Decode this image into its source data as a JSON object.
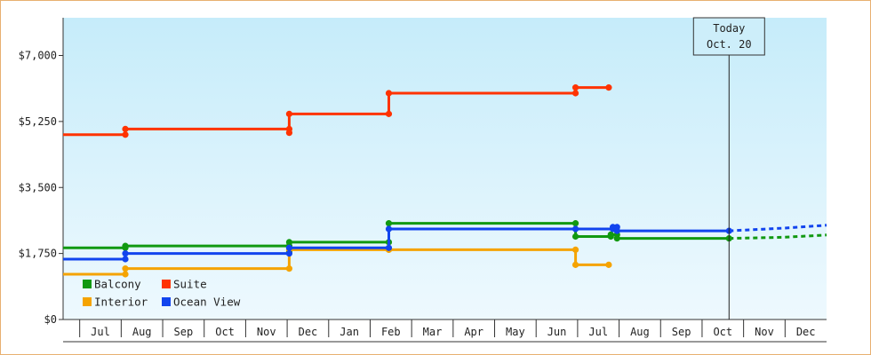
{
  "chart_data": {
    "type": "line",
    "title": "",
    "xlabel": "",
    "ylabel": "",
    "ylim": [
      0,
      8000
    ],
    "y_ticks": [
      {
        "value": 0,
        "label": "$0"
      },
      {
        "value": 1750,
        "label": "$1,750"
      },
      {
        "value": 3500,
        "label": "$3,500"
      },
      {
        "value": 5250,
        "label": "$5,250"
      },
      {
        "value": 7000,
        "label": "$7,000"
      }
    ],
    "x_months": [
      "Jul",
      "Aug",
      "Sep",
      "Oct",
      "Nov",
      "Dec",
      "Jan",
      "Feb",
      "Mar",
      "Apr",
      "May",
      "Jun",
      "Jul",
      "Aug",
      "Sep",
      "Oct",
      "Nov",
      "Dec"
    ],
    "x_unit": "month index (0 = start of Jul)",
    "xlim": [
      -0.4,
      18
    ],
    "today": {
      "line1": "Today",
      "line2": "Oct. 20",
      "x": 15.65
    },
    "grid": "none",
    "legend_position": "bottom-left",
    "series": [
      {
        "name": "Suite",
        "color": "#ff3300",
        "points": [
          [
            -0.4,
            4900
          ],
          [
            1.1,
            4900
          ],
          [
            1.1,
            5050
          ],
          [
            5.05,
            5050
          ],
          [
            5.05,
            4950
          ],
          [
            5.05,
            5450
          ],
          [
            7.45,
            5450
          ],
          [
            7.45,
            6000
          ],
          [
            11.95,
            6000
          ],
          [
            11.95,
            6150
          ],
          [
            12.75,
            6150
          ]
        ]
      },
      {
        "name": "Balcony",
        "color": "#119911",
        "points": [
          [
            -0.4,
            1900
          ],
          [
            1.1,
            1900
          ],
          [
            1.1,
            1950
          ],
          [
            5.05,
            1950
          ],
          [
            5.05,
            1800
          ],
          [
            5.05,
            2050
          ],
          [
            7.45,
            2050
          ],
          [
            7.45,
            2550
          ],
          [
            11.95,
            2550
          ],
          [
            11.95,
            2200
          ],
          [
            12.8,
            2200
          ],
          [
            12.8,
            2250
          ],
          [
            12.95,
            2250
          ],
          [
            12.95,
            2150
          ],
          [
            15.65,
            2150
          ]
        ],
        "projection": [
          [
            15.65,
            2150
          ],
          [
            16.95,
            2180
          ],
          [
            18,
            2240
          ]
        ]
      },
      {
        "name": "Interior",
        "color": "#f5a300",
        "points": [
          [
            -0.4,
            1200
          ],
          [
            1.1,
            1200
          ],
          [
            1.1,
            1350
          ],
          [
            5.05,
            1350
          ],
          [
            5.05,
            1850
          ],
          [
            7.45,
            1850
          ],
          [
            7.45,
            1850
          ],
          [
            11.95,
            1850
          ],
          [
            11.95,
            1450
          ],
          [
            12.75,
            1450
          ]
        ]
      },
      {
        "name": "Ocean View",
        "color": "#1144ee",
        "points": [
          [
            -0.4,
            1600
          ],
          [
            1.1,
            1600
          ],
          [
            1.1,
            1750
          ],
          [
            5.05,
            1750
          ],
          [
            5.05,
            1900
          ],
          [
            7.45,
            1900
          ],
          [
            7.45,
            2400
          ],
          [
            11.95,
            2400
          ],
          [
            12.85,
            2400
          ],
          [
            12.85,
            2450
          ],
          [
            12.95,
            2450
          ],
          [
            12.95,
            2350
          ],
          [
            15.65,
            2350
          ]
        ],
        "projection": [
          [
            15.65,
            2350
          ],
          [
            16.95,
            2420
          ],
          [
            18,
            2500
          ]
        ]
      }
    ],
    "legend": [
      {
        "name": "Balcony",
        "color": "#119911"
      },
      {
        "name": "Suite",
        "color": "#ff3300"
      },
      {
        "name": "Interior",
        "color": "#f5a300"
      },
      {
        "name": "Ocean View",
        "color": "#1144ee"
      }
    ]
  }
}
